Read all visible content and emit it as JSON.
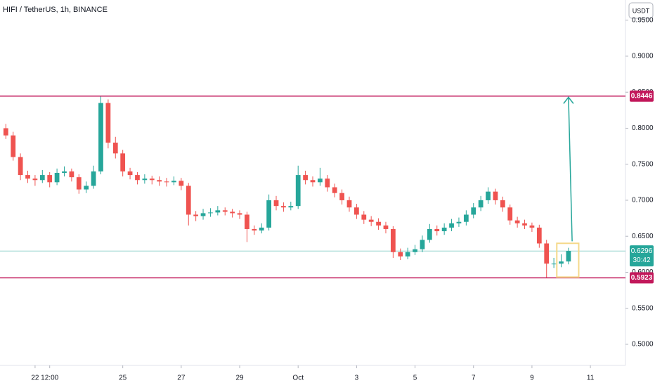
{
  "chart_data": {
    "type": "candlestick",
    "title": "HIFI / TetherUS, 1h, BINANCE",
    "currency": "USDT",
    "up_color": "#26a69a",
    "down_color": "#ef5350",
    "level_color": "#c2185b",
    "candles": [
      [
        0.8,
        0.806,
        0.785,
        0.79
      ],
      [
        0.79,
        0.795,
        0.755,
        0.76
      ],
      [
        0.76,
        0.765,
        0.728,
        0.735
      ],
      [
        0.735,
        0.741,
        0.724,
        0.73
      ],
      [
        0.73,
        0.735,
        0.72,
        0.728
      ],
      [
        0.728,
        0.742,
        0.724,
        0.735
      ],
      [
        0.735,
        0.739,
        0.718,
        0.725
      ],
      [
        0.725,
        0.744,
        0.721,
        0.738
      ],
      [
        0.738,
        0.747,
        0.733,
        0.74
      ],
      [
        0.74,
        0.744,
        0.726,
        0.732
      ],
      [
        0.732,
        0.736,
        0.709,
        0.715
      ],
      [
        0.715,
        0.726,
        0.71,
        0.72
      ],
      [
        0.72,
        0.748,
        0.716,
        0.74
      ],
      [
        0.74,
        0.8446,
        0.736,
        0.835
      ],
      [
        0.835,
        0.84,
        0.772,
        0.78
      ],
      [
        0.78,
        0.788,
        0.758,
        0.765
      ],
      [
        0.765,
        0.77,
        0.733,
        0.74
      ],
      [
        0.74,
        0.745,
        0.729,
        0.735
      ],
      [
        0.735,
        0.739,
        0.722,
        0.728
      ],
      [
        0.728,
        0.736,
        0.723,
        0.73
      ],
      [
        0.73,
        0.734,
        0.722,
        0.728
      ],
      [
        0.728,
        0.733,
        0.72,
        0.726
      ],
      [
        0.726,
        0.731,
        0.719,
        0.725
      ],
      [
        0.725,
        0.733,
        0.721,
        0.727
      ],
      [
        0.727,
        0.731,
        0.714,
        0.72
      ],
      [
        0.72,
        0.724,
        0.665,
        0.68
      ],
      [
        0.68,
        0.685,
        0.671,
        0.678
      ],
      [
        0.678,
        0.688,
        0.673,
        0.682
      ],
      [
        0.682,
        0.689,
        0.677,
        0.683
      ],
      [
        0.683,
        0.692,
        0.679,
        0.686
      ],
      [
        0.686,
        0.69,
        0.679,
        0.684
      ],
      [
        0.684,
        0.688,
        0.676,
        0.682
      ],
      [
        0.682,
        0.686,
        0.674,
        0.68
      ],
      [
        0.68,
        0.684,
        0.642,
        0.66
      ],
      [
        0.66,
        0.665,
        0.652,
        0.658
      ],
      [
        0.658,
        0.668,
        0.654,
        0.662
      ],
      [
        0.662,
        0.708,
        0.658,
        0.7
      ],
      [
        0.7,
        0.706,
        0.686,
        0.692
      ],
      [
        0.692,
        0.697,
        0.684,
        0.69
      ],
      [
        0.69,
        0.698,
        0.686,
        0.692
      ],
      [
        0.692,
        0.748,
        0.688,
        0.735
      ],
      [
        0.735,
        0.741,
        0.722,
        0.728
      ],
      [
        0.728,
        0.733,
        0.719,
        0.725
      ],
      [
        0.725,
        0.745,
        0.72,
        0.73
      ],
      [
        0.73,
        0.735,
        0.712,
        0.718
      ],
      [
        0.718,
        0.723,
        0.704,
        0.71
      ],
      [
        0.71,
        0.715,
        0.694,
        0.7
      ],
      [
        0.7,
        0.705,
        0.684,
        0.69
      ],
      [
        0.69,
        0.695,
        0.674,
        0.68
      ],
      [
        0.68,
        0.685,
        0.667,
        0.673
      ],
      [
        0.673,
        0.678,
        0.664,
        0.67
      ],
      [
        0.67,
        0.675,
        0.659,
        0.665
      ],
      [
        0.665,
        0.67,
        0.654,
        0.66
      ],
      [
        0.66,
        0.664,
        0.62,
        0.628
      ],
      [
        0.628,
        0.633,
        0.617,
        0.622
      ],
      [
        0.622,
        0.634,
        0.618,
        0.628
      ],
      [
        0.628,
        0.638,
        0.624,
        0.632
      ],
      [
        0.632,
        0.651,
        0.628,
        0.645
      ],
      [
        0.645,
        0.667,
        0.641,
        0.66
      ],
      [
        0.66,
        0.665,
        0.651,
        0.657
      ],
      [
        0.657,
        0.668,
        0.652,
        0.662
      ],
      [
        0.662,
        0.674,
        0.657,
        0.668
      ],
      [
        0.668,
        0.676,
        0.663,
        0.67
      ],
      [
        0.67,
        0.686,
        0.665,
        0.68
      ],
      [
        0.68,
        0.696,
        0.675,
        0.69
      ],
      [
        0.69,
        0.706,
        0.685,
        0.7
      ],
      [
        0.7,
        0.718,
        0.695,
        0.712
      ],
      [
        0.712,
        0.716,
        0.694,
        0.7
      ],
      [
        0.7,
        0.705,
        0.684,
        0.69
      ],
      [
        0.69,
        0.694,
        0.666,
        0.672
      ],
      [
        0.672,
        0.677,
        0.662,
        0.668
      ],
      [
        0.668,
        0.673,
        0.66,
        0.665
      ],
      [
        0.665,
        0.669,
        0.656,
        0.662
      ],
      [
        0.662,
        0.666,
        0.634,
        0.64
      ],
      [
        0.64,
        0.645,
        0.5923,
        0.612
      ],
      [
        0.612,
        0.62,
        0.606,
        0.612
      ],
      [
        0.612,
        0.625,
        0.607,
        0.615
      ],
      [
        0.615,
        0.634,
        0.611,
        0.6296
      ]
    ],
    "xlim": [
      -0.8,
      84.8
    ],
    "xticks": [
      {
        "value": 4,
        "label": "22"
      },
      {
        "value": 6,
        "label": "12:00"
      },
      {
        "value": 16,
        "label": "25"
      },
      {
        "value": 24,
        "label": "27"
      },
      {
        "value": 32,
        "label": "29"
      },
      {
        "value": 40,
        "label": "Oct"
      },
      {
        "value": 48,
        "label": "3"
      },
      {
        "value": 56,
        "label": "5"
      },
      {
        "value": 64,
        "label": "7"
      },
      {
        "value": 72,
        "label": "9"
      },
      {
        "value": 80,
        "label": "11"
      }
    ],
    "ylim": [
      0.4707,
      0.978
    ],
    "yticks": [
      {
        "value": 0.5,
        "label": "0.5000"
      },
      {
        "value": 0.55,
        "label": "0.5500"
      },
      {
        "value": 0.6,
        "label": "0.6000"
      },
      {
        "value": 0.65,
        "label": "0.6500"
      },
      {
        "value": 0.7,
        "label": "0.7000"
      },
      {
        "value": 0.75,
        "label": "0.7500"
      },
      {
        "value": 0.8,
        "label": "0.8000"
      },
      {
        "value": 0.85,
        "label": "0.8500"
      },
      {
        "value": 0.9,
        "label": "0.9000"
      },
      {
        "value": 0.95,
        "label": "0.9500"
      }
    ],
    "levels": [
      0.8446,
      0.5923
    ],
    "last_price": 0.6296,
    "countdown": "30:42",
    "arrow": {
      "x": [
        77.5,
        77
      ],
      "y": [
        0.643,
        0.843
      ]
    },
    "highlight_box": {
      "x": [
        75.4,
        78.4
      ],
      "y": [
        0.5933,
        0.6402
      ]
    }
  }
}
